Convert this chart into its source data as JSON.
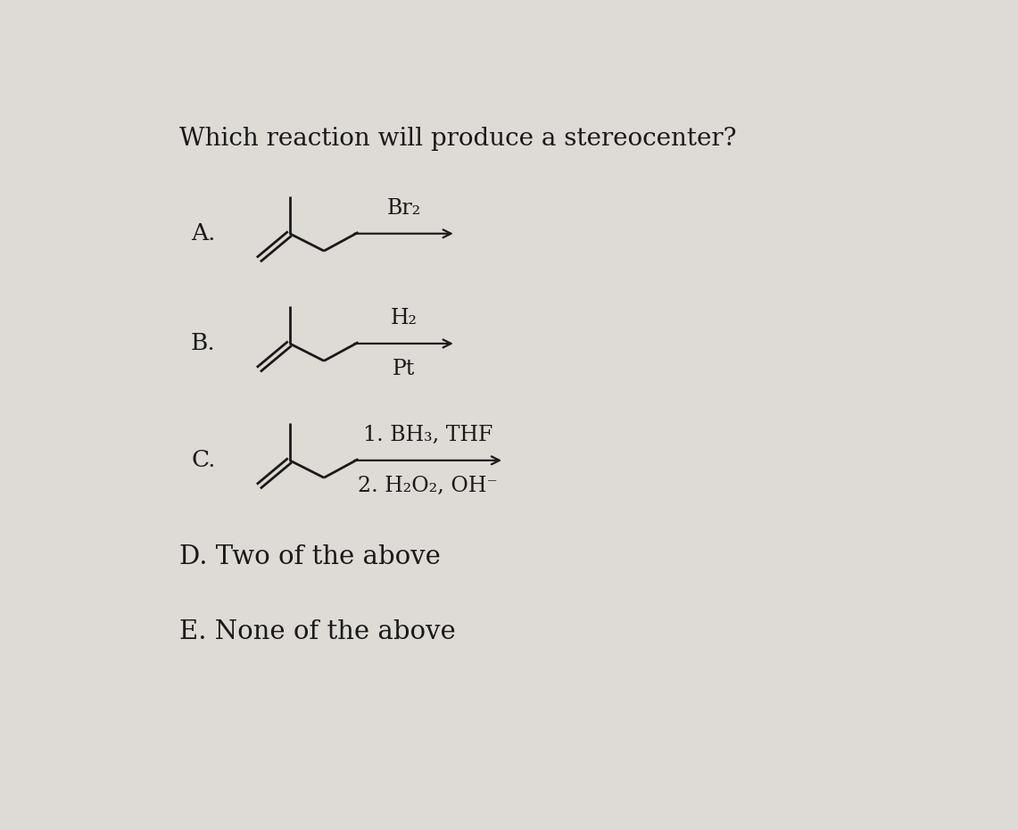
{
  "title": "Which reaction will produce a stereocenter?",
  "title_fontsize": 20,
  "bg_color": "#dedad6",
  "text_color": "#1a1a1a",
  "option_A_label": "A.",
  "option_B_label": "B.",
  "option_C_label": "C.",
  "option_D": "D. Two of the above",
  "option_E": "E. None of the above",
  "reaction_A_reagent_top": "Br₂",
  "reaction_B_reagent_top": "H₂",
  "reaction_B_reagent_bot": "Pt",
  "reaction_C_reagent_top": "1. BH₃, THF",
  "reaction_C_reagent_bot": "2. H₂O₂, OH⁻",
  "font_family": "DejaVu Serif",
  "label_fontsize": 19,
  "reagent_fontsize": 17,
  "de_fontsize": 21,
  "mol_lw": 2.0,
  "arrow_lw": 1.6
}
